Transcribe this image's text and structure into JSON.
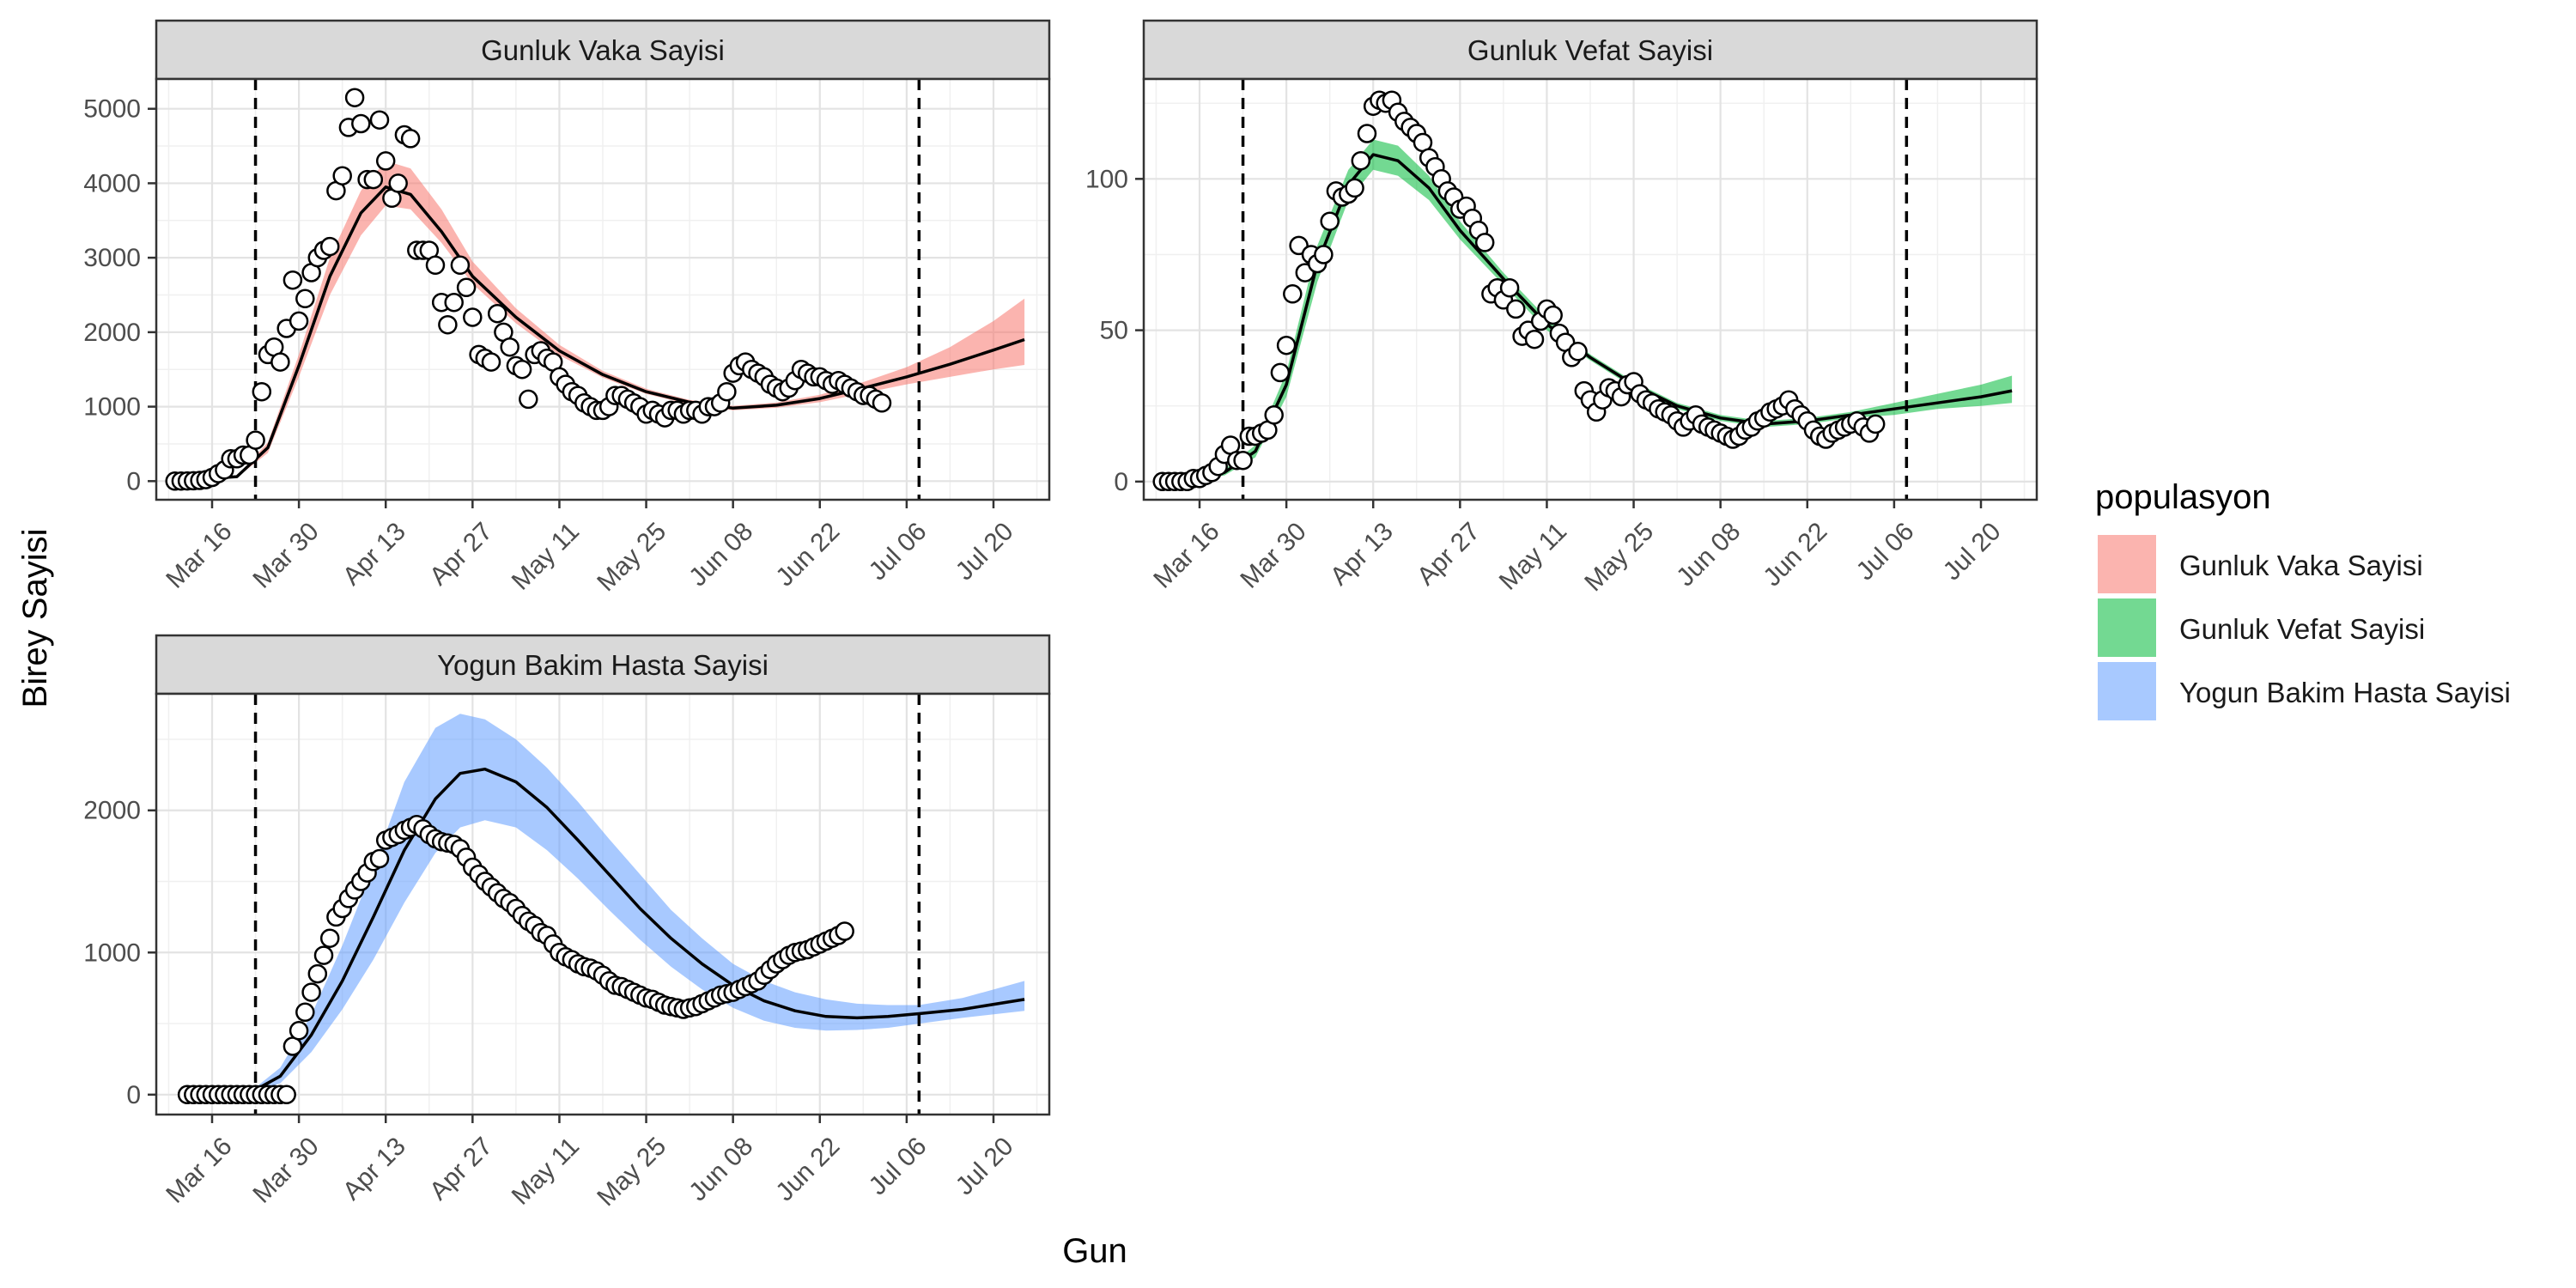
{
  "figure": {
    "x_axis_title": "Gun",
    "y_axis_title": "Birey Sayisi",
    "legend_title": "populasyon"
  },
  "legend": [
    {
      "label": "Gunluk Vaka Sayisi",
      "color": "#F8766D"
    },
    {
      "label": "Gunluk Vefat Sayisi",
      "color": "#00BA38"
    },
    {
      "label": "Yogun Bakim Hasta Sayisi",
      "color": "#619CFF"
    }
  ],
  "chart_data": [
    {
      "type": "scatter",
      "title": "Gunluk Vaka Sayisi",
      "color": "#F8766D",
      "x_ticks": [
        "2020-03-16",
        "2020-03-30",
        "2020-04-13",
        "2020-04-27",
        "2020-05-11",
        "2020-05-25",
        "2020-06-08",
        "2020-06-22",
        "2020-07-06",
        "2020-07-20"
      ],
      "x_tick_labels": [
        "Mar 16",
        "Mar 30",
        "Apr 13",
        "Apr 27",
        "May 11",
        "May 25",
        "Jun 08",
        "Jun 22",
        "Jul 06",
        "Jul 20"
      ],
      "xlim": [
        "2020-03-07",
        "2020-07-29"
      ],
      "y_ticks": [
        0,
        1000,
        2000,
        3000,
        4000,
        5000
      ],
      "y_tick_labels": [
        "0",
        "1000",
        "2000",
        "3000",
        "4000",
        "5000"
      ],
      "ylim": [
        -250,
        5400
      ],
      "vlines": [
        "2020-03-23",
        "2020-07-08"
      ],
      "grid": true,
      "observed": {
        "x_start": "2020-03-10",
        "y": [
          0,
          1,
          2,
          5,
          10,
          20,
          50,
          100,
          150,
          300,
          300,
          350,
          350,
          550,
          1200,
          1700,
          1800,
          1600,
          2050,
          2700,
          2150,
          2450,
          2800,
          3000,
          3100,
          3150,
          3900,
          4100,
          4750,
          5150,
          4800,
          4050,
          4050,
          4850,
          4300,
          3800,
          4000,
          4650,
          4600,
          3100,
          3100,
          3100,
          2900,
          2400,
          2100,
          2400,
          2900,
          2600,
          2200,
          1700,
          1650,
          1600,
          2250,
          2000,
          1800,
          1550,
          1500,
          1100,
          1700,
          1750,
          1650,
          1600,
          1400,
          1300,
          1200,
          1150,
          1050,
          1000,
          950,
          950,
          1000,
          1150,
          1150,
          1100,
          1050,
          1000,
          900,
          950,
          900,
          850,
          950,
          950,
          900,
          950,
          950,
          900,
          1000,
          1000,
          1050,
          1200,
          1450,
          1550,
          1600,
          1500,
          1450,
          1400,
          1300,
          1250,
          1200,
          1250,
          1350,
          1500,
          1450,
          1400,
          1400,
          1350,
          1300,
          1350,
          1300,
          1250,
          1200,
          1150,
          1150,
          1100,
          1050
        ]
      },
      "fit": {
        "x": [
          "2020-03-10",
          "2020-03-20",
          "2020-03-25",
          "2020-03-30",
          "2020-04-04",
          "2020-04-09",
          "2020-04-13",
          "2020-04-17",
          "2020-04-22",
          "2020-04-27",
          "2020-05-04",
          "2020-05-11",
          "2020-05-18",
          "2020-05-25",
          "2020-06-01",
          "2020-06-08",
          "2020-06-15",
          "2020-06-22",
          "2020-06-29",
          "2020-07-06",
          "2020-07-13",
          "2020-07-20",
          "2020-07-25"
        ],
        "y": [
          0,
          60,
          450,
          1550,
          2750,
          3600,
          3950,
          3850,
          3350,
          2750,
          2200,
          1750,
          1430,
          1200,
          1060,
          980,
          1020,
          1110,
          1250,
          1400,
          1570,
          1760,
          1900
        ],
        "lower": [
          0,
          50,
          380,
          1400,
          2500,
          3300,
          3700,
          3650,
          3200,
          2650,
          2120,
          1690,
          1390,
          1170,
          1030,
          950,
          985,
          1060,
          1180,
          1300,
          1400,
          1500,
          1560
        ],
        "upper": [
          0,
          70,
          520,
          1700,
          3000,
          3900,
          4300,
          4200,
          3650,
          2950,
          2320,
          1830,
          1480,
          1240,
          1090,
          1010,
          1055,
          1160,
          1330,
          1530,
          1800,
          2150,
          2450
        ]
      }
    },
    {
      "type": "scatter",
      "title": "Gunluk Vefat Sayisi",
      "color": "#00BA38",
      "x_ticks": [
        "2020-03-16",
        "2020-03-30",
        "2020-04-13",
        "2020-04-27",
        "2020-05-11",
        "2020-05-25",
        "2020-06-08",
        "2020-06-22",
        "2020-07-06",
        "2020-07-20"
      ],
      "x_tick_labels": [
        "Mar 16",
        "Mar 30",
        "Apr 13",
        "Apr 27",
        "May 11",
        "May 25",
        "Jun 08",
        "Jun 22",
        "Jul 06",
        "Jul 20"
      ],
      "xlim": [
        "2020-03-07",
        "2020-07-29"
      ],
      "y_ticks": [
        0,
        50,
        100
      ],
      "y_tick_labels": [
        "0",
        "50",
        "100"
      ],
      "ylim": [
        -6,
        133
      ],
      "vlines": [
        "2020-03-23",
        "2020-07-08"
      ],
      "grid": true,
      "observed": {
        "x_start": "2020-03-10",
        "y": [
          0,
          0,
          0,
          0,
          0,
          1,
          1,
          2,
          3,
          5,
          9,
          12,
          7,
          7,
          15,
          15,
          16,
          17,
          22,
          36,
          45,
          62,
          78,
          69,
          75,
          72,
          75,
          86,
          96,
          94,
          95,
          97,
          106,
          115,
          124,
          126,
          125,
          126,
          122,
          119,
          117,
          115,
          112,
          107,
          104,
          100,
          96,
          94,
          90,
          91,
          87,
          83,
          79,
          62,
          64,
          60,
          64,
          57,
          48,
          50,
          47,
          53,
          57,
          55,
          49,
          46,
          41,
          43,
          30,
          27,
          23,
          27,
          31,
          30,
          28,
          32,
          33,
          29,
          27,
          26,
          24,
          23,
          22,
          20,
          18,
          20,
          22,
          19,
          18,
          17,
          16,
          15,
          14,
          15,
          17,
          18,
          20,
          21,
          23,
          24,
          25,
          27,
          24,
          22,
          20,
          17,
          15,
          14,
          16,
          17,
          18,
          19,
          20,
          18,
          16,
          19
        ]
      },
      "fit": {
        "x": [
          "2020-03-10",
          "2020-03-20",
          "2020-03-25",
          "2020-03-30",
          "2020-04-04",
          "2020-04-09",
          "2020-04-13",
          "2020-04-17",
          "2020-04-22",
          "2020-04-27",
          "2020-05-04",
          "2020-05-11",
          "2020-05-18",
          "2020-05-25",
          "2020-06-01",
          "2020-06-08",
          "2020-06-15",
          "2020-06-22",
          "2020-06-29",
          "2020-07-06",
          "2020-07-13",
          "2020-07-20",
          "2020-07-25"
        ],
        "y": [
          0,
          3,
          10,
          32,
          72,
          98,
          108,
          106,
          97,
          83,
          67,
          52,
          41,
          32,
          25,
          21,
          19,
          20,
          22,
          24,
          26,
          28,
          30
        ],
        "lower": [
          0,
          2,
          8,
          28,
          66,
          93,
          103,
          101,
          93,
          80,
          65,
          50,
          40,
          31,
          24,
          20,
          18,
          19,
          21,
          22,
          24,
          25,
          26
        ],
        "upper": [
          0,
          4,
          12,
          36,
          78,
          103,
          113,
          111,
          101,
          86,
          69,
          54,
          42,
          33,
          26,
          22,
          20,
          21,
          23,
          26,
          29,
          32,
          35
        ]
      }
    },
    {
      "type": "scatter",
      "title": "Yogun Bakim Hasta Sayisi",
      "color": "#619CFF",
      "x_ticks": [
        "2020-03-16",
        "2020-03-30",
        "2020-04-13",
        "2020-04-27",
        "2020-05-11",
        "2020-05-25",
        "2020-06-08",
        "2020-06-22",
        "2020-07-06",
        "2020-07-20"
      ],
      "x_tick_labels": [
        "Mar 16",
        "Mar 30",
        "Apr 13",
        "Apr 27",
        "May 11",
        "May 25",
        "Jun 08",
        "Jun 22",
        "Jul 06",
        "Jul 20"
      ],
      "xlim": [
        "2020-03-07",
        "2020-07-29"
      ],
      "y_ticks": [
        0,
        1000,
        2000
      ],
      "y_tick_labels": [
        "0",
        "1000",
        "2000"
      ],
      "ylim": [
        -140,
        2820
      ],
      "vlines": [
        "2020-03-23",
        "2020-07-08"
      ],
      "grid": true,
      "observed": {
        "x_start": "2020-03-12",
        "y": [
          0,
          0,
          0,
          0,
          0,
          0,
          0,
          0,
          0,
          0,
          0,
          0,
          0,
          0,
          0,
          0,
          0,
          340,
          450,
          580,
          720,
          850,
          980,
          1100,
          1250,
          1310,
          1380,
          1440,
          1500,
          1560,
          1640,
          1660,
          1790,
          1810,
          1830,
          1860,
          1880,
          1900,
          1870,
          1830,
          1800,
          1780,
          1770,
          1760,
          1730,
          1670,
          1600,
          1550,
          1500,
          1460,
          1420,
          1380,
          1350,
          1310,
          1260,
          1220,
          1190,
          1140,
          1120,
          1060,
          1000,
          970,
          950,
          920,
          900,
          890,
          870,
          840,
          800,
          770,
          760,
          740,
          720,
          700,
          680,
          670,
          650,
          630,
          620,
          610,
          600,
          610,
          620,
          640,
          660,
          680,
          700,
          710,
          720,
          740,
          760,
          780,
          800,
          840,
          880,
          920,
          950,
          980,
          1000,
          1010,
          1020,
          1040,
          1060,
          1080,
          1100,
          1120,
          1150
        ]
      },
      "fit": {
        "x": [
          "2020-03-12",
          "2020-03-22",
          "2020-03-27",
          "2020-04-01",
          "2020-04-06",
          "2020-04-11",
          "2020-04-16",
          "2020-04-21",
          "2020-04-25",
          "2020-04-29",
          "2020-05-04",
          "2020-05-09",
          "2020-05-14",
          "2020-05-19",
          "2020-05-24",
          "2020-05-29",
          "2020-06-03",
          "2020-06-08",
          "2020-06-13",
          "2020-06-18",
          "2020-06-23",
          "2020-06-28",
          "2020-07-03",
          "2020-07-08",
          "2020-07-15",
          "2020-07-25"
        ],
        "y": [
          0,
          10,
          130,
          420,
          800,
          1250,
          1720,
          2080,
          2260,
          2290,
          2200,
          2020,
          1790,
          1550,
          1310,
          1100,
          920,
          770,
          660,
          590,
          550,
          540,
          550,
          570,
          600,
          670
        ],
        "lower": [
          0,
          5,
          80,
          300,
          600,
          950,
          1350,
          1700,
          1880,
          1930,
          1880,
          1720,
          1520,
          1300,
          1090,
          900,
          740,
          610,
          520,
          470,
          450,
          455,
          470,
          500,
          540,
          590
        ],
        "upper": [
          0,
          15,
          190,
          560,
          1050,
          1600,
          2200,
          2580,
          2680,
          2640,
          2500,
          2300,
          2060,
          1800,
          1550,
          1300,
          1100,
          920,
          800,
          720,
          670,
          640,
          630,
          630,
          680,
          800
        ]
      }
    }
  ]
}
